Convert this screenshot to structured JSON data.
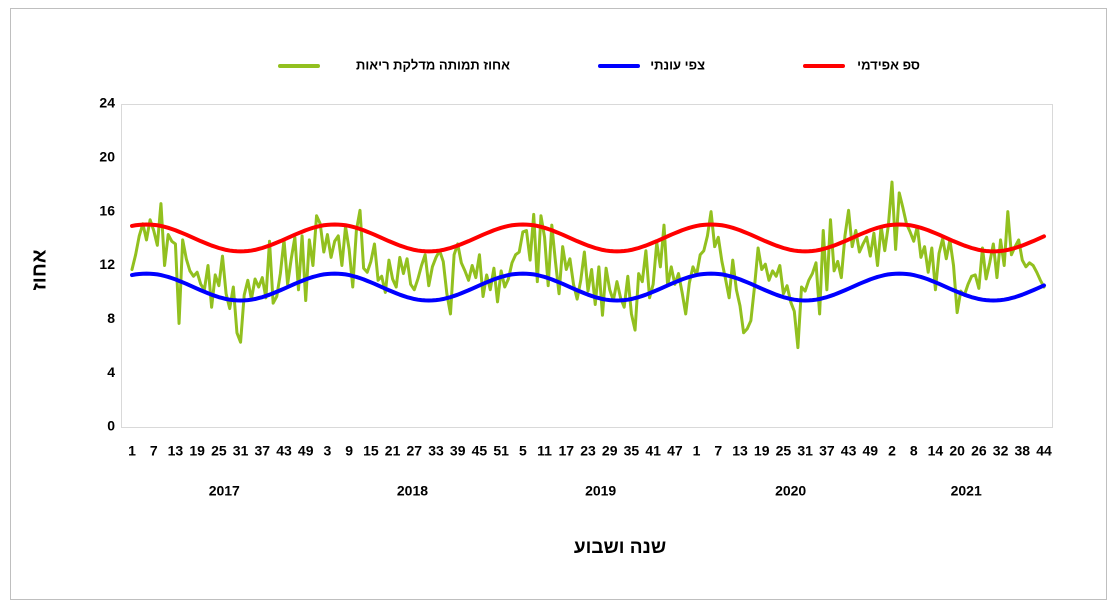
{
  "chart_data": {
    "type": "line",
    "y_label": "אחוז",
    "x_label": "שנה ושבוע",
    "legend": "top",
    "ylim": [
      0,
      24
    ],
    "yticks": [
      0,
      4,
      8,
      12,
      16,
      20,
      24
    ],
    "x_groups": [
      "2017",
      "2018",
      "2019",
      "2020",
      "2021"
    ],
    "categories": [
      "1",
      null,
      null,
      null,
      null,
      null,
      "7",
      null,
      null,
      null,
      null,
      null,
      "13",
      null,
      null,
      null,
      null,
      null,
      "19",
      null,
      null,
      null,
      null,
      null,
      "25",
      null,
      null,
      null,
      null,
      null,
      "31",
      null,
      null,
      null,
      null,
      null,
      "37",
      null,
      null,
      null,
      null,
      null,
      "43",
      null,
      null,
      null,
      null,
      null,
      "49",
      null,
      null,
      null,
      null,
      null,
      "3",
      null,
      null,
      null,
      null,
      null,
      "9",
      null,
      null,
      null,
      null,
      null,
      "15",
      null,
      null,
      null,
      null,
      null,
      "21",
      null,
      null,
      null,
      null,
      null,
      "27",
      null,
      null,
      null,
      null,
      null,
      "33",
      null,
      null,
      null,
      null,
      null,
      "39",
      null,
      null,
      null,
      null,
      null,
      "45",
      null,
      null,
      null,
      null,
      null,
      "51",
      null,
      null,
      null,
      null,
      null,
      "5",
      null,
      null,
      null,
      null,
      null,
      "11",
      null,
      null,
      null,
      null,
      null,
      "17",
      null,
      null,
      null,
      null,
      null,
      "23",
      null,
      null,
      null,
      null,
      null,
      "29",
      null,
      null,
      null,
      null,
      null,
      "35",
      null,
      null,
      null,
      null,
      null,
      "41",
      null,
      null,
      null,
      null,
      null,
      "47",
      null,
      null,
      null,
      null,
      null,
      "1",
      null,
      null,
      null,
      null,
      null,
      "7",
      null,
      null,
      null,
      null,
      null,
      "13",
      null,
      null,
      null,
      null,
      null,
      "19",
      null,
      null,
      null,
      null,
      null,
      "25",
      null,
      null,
      null,
      null,
      null,
      "31",
      null,
      null,
      null,
      null,
      null,
      "37",
      null,
      null,
      null,
      null,
      null,
      "43",
      null,
      null,
      null,
      null,
      null,
      "49",
      null,
      null,
      null,
      null,
      null,
      "2",
      null,
      null,
      null,
      null,
      null,
      "8",
      null,
      null,
      null,
      null,
      null,
      "14",
      null,
      null,
      null,
      null,
      null,
      "20",
      null,
      null,
      null,
      null,
      null,
      "26",
      null,
      null,
      null,
      null,
      null,
      "32",
      null,
      null,
      null,
      null,
      null,
      "38",
      null,
      null,
      null,
      null,
      null,
      "44"
    ],
    "series": [
      {
        "name": "אחוז תמותה מדלקת ריאות",
        "color": "#92c01f",
        "values": [
          11.7,
          12.8,
          14.2,
          15.1,
          13.9,
          15.4,
          14.6,
          13.5,
          16.6,
          12.0,
          14.3,
          13.8,
          13.6,
          7.7,
          13.9,
          12.5,
          11.6,
          11.2,
          11.5,
          10.6,
          10.2,
          12.0,
          8.9,
          11.3,
          10.5,
          12.7,
          9.9,
          8.8,
          10.4,
          7.0,
          6.3,
          9.8,
          10.9,
          9.5,
          11.0,
          10.4,
          11.1,
          9.6,
          13.8,
          9.2,
          9.7,
          11.4,
          13.9,
          10.6,
          12.5,
          14.1,
          10.2,
          14.2,
          9.4,
          13.9,
          12.0,
          15.7,
          15.1,
          13.0,
          14.3,
          12.6,
          13.8,
          14.2,
          12.0,
          14.9,
          13.2,
          10.4,
          14.6,
          16.1,
          11.8,
          11.5,
          12.3,
          13.6,
          10.9,
          11.2,
          10.0,
          12.4,
          11.0,
          10.4,
          12.6,
          11.4,
          12.5,
          10.6,
          10.2,
          11.0,
          12.0,
          12.8,
          10.5,
          11.9,
          12.6,
          13.1,
          12.3,
          9.9,
          8.4,
          12.8,
          13.6,
          12.2,
          11.6,
          10.9,
          12.0,
          11.1,
          12.8,
          9.7,
          11.3,
          10.2,
          11.8,
          9.3,
          11.6,
          10.4,
          11.0,
          12.2,
          12.8,
          13.0,
          14.5,
          14.6,
          12.4,
          15.8,
          10.8,
          15.7,
          14.1,
          10.5,
          15.0,
          12.3,
          9.9,
          13.4,
          11.7,
          12.5,
          10.6,
          9.5,
          10.9,
          13.0,
          10.1,
          11.7,
          9.1,
          11.9,
          8.3,
          11.8,
          10.2,
          9.4,
          10.8,
          9.6,
          8.9,
          11.2,
          8.4,
          7.2,
          11.4,
          10.8,
          13.1,
          9.6,
          10.6,
          13.7,
          11.9,
          15.0,
          10.5,
          11.9,
          10.6,
          11.4,
          10.0,
          8.4,
          10.7,
          11.9,
          11.3,
          12.8,
          13.1,
          14.2,
          16.0,
          13.4,
          14.1,
          12.3,
          11.0,
          9.6,
          12.4,
          10.2,
          9.0,
          7.0,
          7.3,
          7.9,
          10.4,
          13.3,
          11.7,
          12.1,
          10.9,
          11.6,
          11.2,
          12.0,
          9.9,
          10.5,
          9.3,
          8.6,
          5.9,
          10.4,
          10.1,
          10.9,
          11.4,
          12.2,
          8.4,
          14.6,
          10.2,
          15.4,
          11.6,
          12.3,
          11.1,
          14.2,
          16.1,
          13.4,
          14.6,
          13.0,
          13.6,
          14.1,
          12.7,
          14.4,
          12.0,
          14.9,
          13.1,
          15.0,
          18.2,
          13.2,
          17.4,
          16.3,
          15.1,
          14.5,
          13.8,
          14.9,
          12.6,
          13.4,
          11.5,
          13.3,
          10.2,
          12.9,
          14.0,
          12.5,
          13.9,
          12.0,
          8.5,
          10.1,
          9.8,
          10.6,
          11.2,
          11.3,
          10.3,
          13.3,
          11.0,
          12.2,
          13.6,
          11.1,
          13.9,
          12.0,
          16.0,
          12.8,
          13.4,
          13.9,
          12.4,
          11.9,
          12.2,
          12.0,
          11.5,
          10.9,
          10.4
        ]
      },
      {
        "name": "צפי עונתי",
        "color": "#0000ff",
        "values": [
          11.29,
          11.34,
          11.37,
          11.39,
          11.4,
          11.39,
          11.37,
          11.34,
          11.29,
          11.22,
          11.15,
          11.06,
          10.97,
          10.86,
          10.75,
          10.64,
          10.52,
          10.4,
          10.28,
          10.16,
          10.05,
          9.94,
          9.83,
          9.74,
          9.65,
          9.58,
          9.51,
          9.46,
          9.43,
          9.41,
          9.4,
          9.41,
          9.43,
          9.46,
          9.51,
          9.58,
          9.65,
          9.74,
          9.83,
          9.94,
          10.05,
          10.16,
          10.28,
          10.4,
          10.52,
          10.64,
          10.75,
          10.86,
          10.97,
          11.06,
          11.15,
          11.22,
          11.29,
          11.34,
          11.37,
          11.39,
          11.4,
          11.39,
          11.37,
          11.34,
          11.29,
          11.22,
          11.15,
          11.06,
          10.97,
          10.86,
          10.75,
          10.64,
          10.52,
          10.4,
          10.28,
          10.16,
          10.05,
          9.94,
          9.83,
          9.74,
          9.65,
          9.58,
          9.51,
          9.46,
          9.43,
          9.41,
          9.4,
          9.41,
          9.43,
          9.46,
          9.51,
          9.58,
          9.65,
          9.74,
          9.83,
          9.94,
          10.05,
          10.16,
          10.28,
          10.4,
          10.52,
          10.64,
          10.75,
          10.86,
          10.97,
          11.06,
          11.15,
          11.22,
          11.29,
          11.34,
          11.37,
          11.39,
          11.4,
          11.39,
          11.37,
          11.34,
          11.29,
          11.22,
          11.15,
          11.06,
          10.97,
          10.86,
          10.75,
          10.64,
          10.52,
          10.4,
          10.28,
          10.16,
          10.05,
          9.94,
          9.83,
          9.74,
          9.65,
          9.58,
          9.51,
          9.46,
          9.43,
          9.41,
          9.4,
          9.41,
          9.43,
          9.46,
          9.51,
          9.58,
          9.65,
          9.74,
          9.83,
          9.94,
          10.05,
          10.16,
          10.28,
          10.4,
          10.52,
          10.64,
          10.75,
          10.86,
          10.97,
          11.06,
          11.15,
          11.22,
          11.29,
          11.34,
          11.37,
          11.39,
          11.4,
          11.39,
          11.37,
          11.34,
          11.29,
          11.22,
          11.15,
          11.06,
          10.97,
          10.86,
          10.75,
          10.64,
          10.52,
          10.4,
          10.28,
          10.16,
          10.05,
          9.94,
          9.83,
          9.74,
          9.65,
          9.58,
          9.51,
          9.46,
          9.43,
          9.41,
          9.4,
          9.41,
          9.43,
          9.46,
          9.51,
          9.58,
          9.65,
          9.74,
          9.83,
          9.94,
          10.05,
          10.16,
          10.28,
          10.4,
          10.52,
          10.64,
          10.75,
          10.86,
          10.97,
          11.06,
          11.15,
          11.22,
          11.29,
          11.34,
          11.37,
          11.39,
          11.4,
          11.39,
          11.37,
          11.34,
          11.29,
          11.22,
          11.15,
          11.06,
          10.97,
          10.86,
          10.75,
          10.64,
          10.52,
          10.4,
          10.28,
          10.16,
          10.05,
          9.94,
          9.83,
          9.74,
          9.65,
          9.58,
          9.51,
          9.46,
          9.43,
          9.41,
          9.4,
          9.41,
          9.43,
          9.46,
          9.51,
          9.58,
          9.65,
          9.74,
          9.83,
          9.94,
          10.05,
          10.16,
          10.28,
          10.4,
          10.52
        ]
      },
      {
        "name": "ספ אפידמי",
        "color": "#ff0000",
        "values": [
          14.94,
          14.99,
          15.02,
          15.04,
          15.05,
          15.04,
          15.02,
          14.99,
          14.94,
          14.87,
          14.8,
          14.71,
          14.62,
          14.51,
          14.4,
          14.29,
          14.17,
          14.05,
          13.93,
          13.81,
          13.7,
          13.59,
          13.48,
          13.39,
          13.3,
          13.23,
          13.16,
          13.11,
          13.08,
          13.06,
          13.05,
          13.06,
          13.08,
          13.11,
          13.16,
          13.23,
          13.3,
          13.39,
          13.48,
          13.59,
          13.7,
          13.81,
          13.93,
          14.05,
          14.17,
          14.29,
          14.4,
          14.51,
          14.62,
          14.71,
          14.8,
          14.87,
          14.94,
          14.99,
          15.02,
          15.04,
          15.05,
          15.04,
          15.02,
          14.99,
          14.94,
          14.87,
          14.8,
          14.71,
          14.62,
          14.51,
          14.4,
          14.29,
          14.17,
          14.05,
          13.93,
          13.81,
          13.7,
          13.59,
          13.48,
          13.39,
          13.3,
          13.23,
          13.16,
          13.11,
          13.08,
          13.06,
          13.05,
          13.06,
          13.08,
          13.11,
          13.16,
          13.23,
          13.3,
          13.39,
          13.48,
          13.59,
          13.7,
          13.81,
          13.93,
          14.05,
          14.17,
          14.29,
          14.4,
          14.51,
          14.62,
          14.71,
          14.8,
          14.87,
          14.94,
          14.99,
          15.02,
          15.04,
          15.05,
          15.04,
          15.02,
          14.99,
          14.94,
          14.87,
          14.8,
          14.71,
          14.62,
          14.51,
          14.4,
          14.29,
          14.17,
          14.05,
          13.93,
          13.81,
          13.7,
          13.59,
          13.48,
          13.39,
          13.3,
          13.23,
          13.16,
          13.11,
          13.08,
          13.06,
          13.05,
          13.06,
          13.08,
          13.11,
          13.16,
          13.23,
          13.3,
          13.39,
          13.48,
          13.59,
          13.7,
          13.81,
          13.93,
          14.05,
          14.17,
          14.29,
          14.4,
          14.51,
          14.62,
          14.71,
          14.8,
          14.87,
          14.94,
          14.99,
          15.02,
          15.04,
          15.05,
          15.04,
          15.02,
          14.99,
          14.94,
          14.87,
          14.8,
          14.71,
          14.62,
          14.51,
          14.4,
          14.29,
          14.17,
          14.05,
          13.93,
          13.81,
          13.7,
          13.59,
          13.48,
          13.39,
          13.3,
          13.23,
          13.16,
          13.11,
          13.08,
          13.06,
          13.05,
          13.06,
          13.08,
          13.11,
          13.16,
          13.23,
          13.3,
          13.39,
          13.48,
          13.59,
          13.7,
          13.81,
          13.93,
          14.05,
          14.17,
          14.29,
          14.4,
          14.51,
          14.62,
          14.71,
          14.8,
          14.87,
          14.94,
          14.99,
          15.02,
          15.04,
          15.05,
          15.04,
          15.02,
          14.99,
          14.94,
          14.87,
          14.8,
          14.71,
          14.62,
          14.51,
          14.4,
          14.29,
          14.17,
          14.05,
          13.93,
          13.81,
          13.7,
          13.59,
          13.48,
          13.39,
          13.3,
          13.23,
          13.16,
          13.11,
          13.08,
          13.06,
          13.05,
          13.06,
          13.08,
          13.11,
          13.16,
          13.23,
          13.3,
          13.39,
          13.48,
          13.59,
          13.7,
          13.81,
          13.93,
          14.05,
          14.17
        ]
      }
    ]
  }
}
